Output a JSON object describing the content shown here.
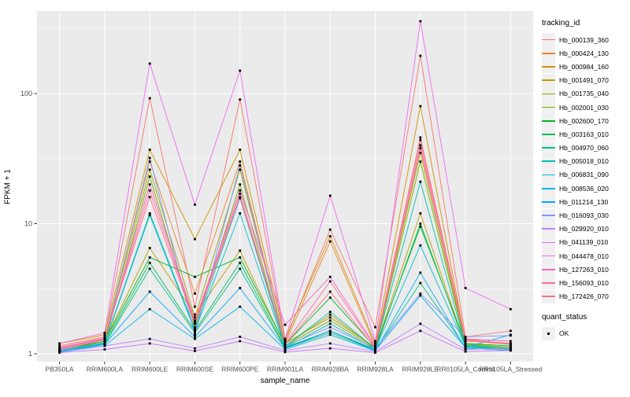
{
  "chart_data": {
    "type": "line",
    "title": "",
    "xlabel": "sample_name",
    "ylabel": "FPKM + 1",
    "y_scale": "log10",
    "y_ticks": [
      1,
      10,
      100
    ],
    "y_tick_labels": [
      "1",
      "10",
      "100"
    ],
    "y_minor_gridlines": [
      3.162,
      31.62,
      316.2
    ],
    "ylim": [
      0.87,
      425
    ],
    "grid": true,
    "legend_position": "right",
    "categories": [
      "PB350LA",
      "RRIM600LA",
      "RRIM600LE",
      "RRIM600SE",
      "RRIM600PE",
      "RRIM901LA",
      "RRIM928BA",
      "RRIM928LA",
      "RRIM928LE",
      "RRII105LA_Control",
      "RRII105LA_Stressed"
    ],
    "series": [
      {
        "name": "Hb_000139_360",
        "color": "#F8766D",
        "values": [
          1.15,
          1.35,
          92,
          2.3,
          90,
          1.25,
          9.0,
          1.6,
          195,
          1.35,
          1.5
        ]
      },
      {
        "name": "Hb_000424_130",
        "color": "#E88526",
        "values": [
          1.1,
          1.3,
          30,
          2.9,
          30,
          1.2,
          7.3,
          1.15,
          46,
          1.3,
          1.18
        ]
      },
      {
        "name": "Hb_000984_160",
        "color": "#D39200",
        "values": [
          1.2,
          1.4,
          37,
          7.6,
          37,
          1.3,
          8.0,
          1.2,
          80,
          1.25,
          1.2
        ]
      },
      {
        "name": "Hb_001491_070",
        "color": "#BB9D00",
        "values": [
          1.05,
          1.25,
          6.5,
          2.0,
          6.2,
          1.15,
          2.0,
          1.1,
          12,
          1.15,
          1.1
        ]
      },
      {
        "name": "Hb_001735_040",
        "color": "#9CA700",
        "values": [
          1.1,
          1.3,
          26,
          1.9,
          26,
          1.2,
          1.9,
          1.12,
          35,
          1.2,
          1.12
        ]
      },
      {
        "name": "Hb_002001_030",
        "color": "#72B000",
        "values": [
          1.05,
          1.2,
          23,
          1.6,
          20,
          1.15,
          1.8,
          1.1,
          30,
          1.18,
          1.1
        ]
      },
      {
        "name": "Hb_002600_170",
        "color": "#00B81F",
        "values": [
          1.08,
          1.25,
          5.5,
          3.9,
          5.5,
          1.18,
          2.7,
          1.12,
          9.5,
          1.2,
          1.15
        ]
      },
      {
        "name": "Hb_003163_010",
        "color": "#00BC59",
        "values": [
          1.05,
          1.2,
          5.0,
          1.5,
          5.0,
          1.12,
          1.5,
          1.08,
          10,
          1.15,
          1.1
        ]
      },
      {
        "name": "Hb_004970_060",
        "color": "#00C08B",
        "values": [
          1.04,
          1.18,
          4.5,
          1.45,
          4.5,
          1.1,
          1.45,
          1.06,
          3.5,
          1.12,
          1.08
        ]
      },
      {
        "name": "Hb_005018_010",
        "color": "#00C0B4",
        "values": [
          1.06,
          1.22,
          12,
          1.55,
          15.7,
          1.14,
          2.1,
          1.1,
          21,
          1.16,
          1.1
        ]
      },
      {
        "name": "Hb_006831_090",
        "color": "#00BDD2",
        "values": [
          1.05,
          1.2,
          11.6,
          1.5,
          12,
          1.12,
          1.7,
          1.08,
          6.8,
          1.14,
          1.08
        ]
      },
      {
        "name": "Hb_008536_020",
        "color": "#00B5ED",
        "values": [
          1.03,
          1.15,
          2.2,
          1.3,
          2.3,
          1.08,
          1.4,
          1.05,
          4.2,
          1.1,
          1.06
        ]
      },
      {
        "name": "Hb_011214_130",
        "color": "#00A6FF",
        "values": [
          1.04,
          1.18,
          3.0,
          1.35,
          3.2,
          1.1,
          1.5,
          1.06,
          2.8,
          1.12,
          1.4
        ]
      },
      {
        "name": "Hb_016093_030",
        "color": "#7C96FF",
        "values": [
          1.08,
          1.28,
          32,
          1.4,
          28,
          1.15,
          1.6,
          1.1,
          2.9,
          1.35,
          1.38
        ]
      },
      {
        "name": "Hb_029920_010",
        "color": "#BC81FF",
        "values": [
          1.05,
          1.15,
          1.3,
          1.1,
          1.35,
          1.06,
          1.2,
          1.04,
          1.7,
          1.08,
          1.1
        ]
      },
      {
        "name": "Hb_041139_010",
        "color": "#CE70F5",
        "values": [
          1.02,
          1.08,
          1.2,
          1.05,
          1.25,
          1.03,
          1.1,
          1.02,
          1.5,
          1.04,
          1.06
        ]
      },
      {
        "name": "Hb_044478_010",
        "color": "#EE6BF3",
        "values": [
          1.2,
          1.45,
          170,
          14,
          150,
          1.3,
          16.4,
          1.25,
          360,
          3.2,
          2.2
        ]
      },
      {
        "name": "Hb_127263_010",
        "color": "#FF61C7",
        "values": [
          1.1,
          1.3,
          20,
          1.8,
          18,
          1.67,
          3.9,
          1.15,
          44,
          1.3,
          1.25
        ]
      },
      {
        "name": "Hb_156093_010",
        "color": "#FF689F",
        "values": [
          1.12,
          1.32,
          16,
          1.7,
          16,
          1.2,
          3.6,
          1.12,
          38,
          1.28,
          1.2
        ]
      },
      {
        "name": "Hb_172426_070",
        "color": "#FC7183",
        "values": [
          1.07,
          1.28,
          18,
          1.75,
          17,
          1.18,
          3.0,
          1.1,
          40,
          1.26,
          1.18
        ]
      }
    ],
    "legend": {
      "color_legend_title": "tracking_id",
      "shape_legend_title": "quant_status",
      "shape_items": [
        {
          "label": "OK",
          "shape": "square",
          "color": "#000000"
        }
      ]
    },
    "style": {
      "panel_bg": "#EBEBEB",
      "grid_color": "#FFFFFF",
      "axis_text_color": "#4D4D4D",
      "tick_mark_color": "#333333",
      "point_color": "#000000"
    }
  }
}
